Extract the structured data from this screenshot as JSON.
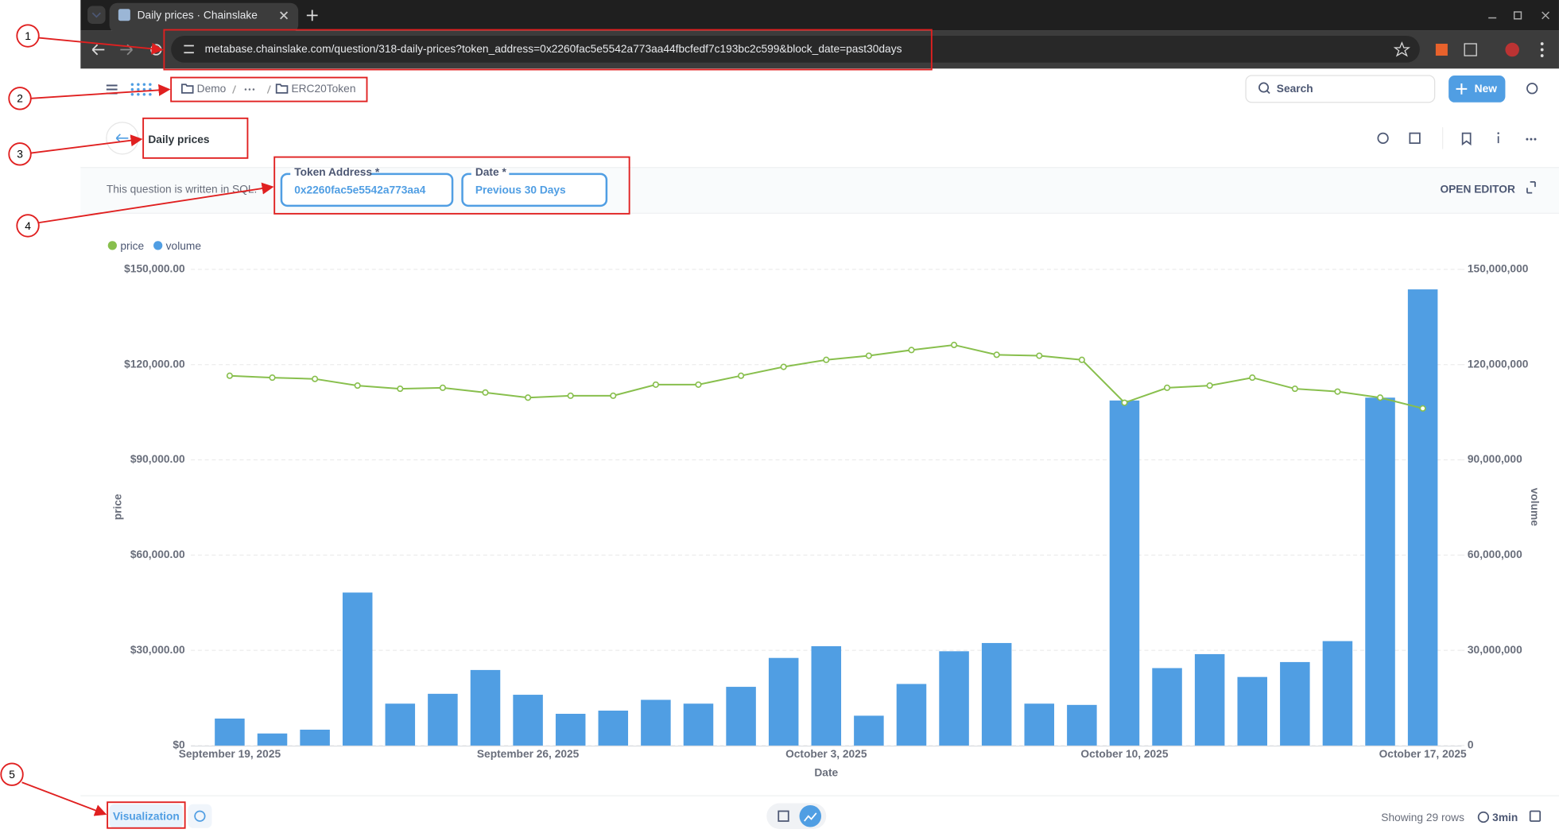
{
  "browser": {
    "tab_title": "Daily prices · Chainslake",
    "url": "metabase.chainslake.com/question/318-daily-prices?token_address=0x2260fac5e5542a773aa44fbcfedf7c193bc2c599&block_date=past30days"
  },
  "header": {
    "breadcrumbs": [
      "Demo",
      "ERC20Token"
    ],
    "search": "Search",
    "new_button": "New"
  },
  "title": "Daily prices",
  "filter_bar": {
    "note": "This question is written in SQL.",
    "filters": [
      {
        "label": "Token Address *",
        "value": "0x2260fac5e5542a773aa4"
      },
      {
        "label": "Date *",
        "value": "Previous 30 Days"
      }
    ],
    "open_editor": "OPEN EDITOR"
  },
  "chart_data": {
    "type": "combo",
    "x_label": "Date",
    "y_label": "price",
    "y2_label": "volume",
    "categories": [
      "September 19, 2025",
      null,
      null,
      null,
      null,
      null,
      null,
      "September 26, 2025",
      null,
      null,
      null,
      null,
      null,
      null,
      "October 3, 2025",
      null,
      null,
      null,
      null,
      null,
      null,
      "October 10, 2025",
      null,
      null,
      null,
      null,
      null,
      null,
      "October 17, 2025"
    ],
    "series": [
      {
        "name": "price",
        "type": "line",
        "color": "#88bf4d",
        "values": [
          116500,
          115900,
          115500,
          113400,
          112400,
          112700,
          111200,
          109600,
          110200,
          110200,
          113700,
          113700,
          116500,
          119300,
          121500,
          122800,
          124600,
          126200,
          123100,
          122800,
          121500,
          108000,
          112700,
          113400,
          115900,
          112400,
          111500,
          109600,
          106200
        ]
      },
      {
        "name": "volume",
        "type": "bar",
        "axis": "y2",
        "color": "#509ee3",
        "values": [
          8500000,
          3800000,
          5000000,
          48200000,
          13200000,
          16300000,
          23800000,
          16000000,
          10000000,
          11000000,
          14400000,
          13200000,
          18500000,
          27600000,
          31300000,
          9400000,
          19400000,
          29700000,
          32300000,
          13200000,
          12800000,
          108700000,
          24400000,
          28800000,
          21600000,
          26300000,
          32900000,
          109600000,
          143700000
        ]
      }
    ],
    "ylim": [
      0,
      150000
    ],
    "yticks": [
      {
        "value": 0,
        "label": "$0"
      },
      {
        "value": 30000,
        "label": "$30,000.00"
      },
      {
        "value": 60000,
        "label": "$60,000.00"
      },
      {
        "value": 90000,
        "label": "$90,000.00"
      },
      {
        "value": 120000,
        "label": "$120,000.00"
      },
      {
        "value": 150000,
        "label": "$150,000.00"
      }
    ],
    "y2lim": [
      0,
      150000000
    ],
    "y2ticks": [
      0,
      {
        "value": 30000000,
        "label": "30,000,000"
      },
      {
        "value": 60000000,
        "label": "60,000,000"
      },
      {
        "value": 90000000,
        "label": "90,000,000"
      },
      {
        "value": 120000000,
        "label": "120,000,000"
      },
      {
        "value": 150000000,
        "label": "150,000,000"
      }
    ],
    "grid": true,
    "legend": "top-left"
  },
  "footer": {
    "visualization": "Visualization",
    "row_count": "Showing 29 rows",
    "cache": "3min"
  },
  "annotations": [
    "1",
    "2",
    "3",
    "4",
    "5"
  ]
}
